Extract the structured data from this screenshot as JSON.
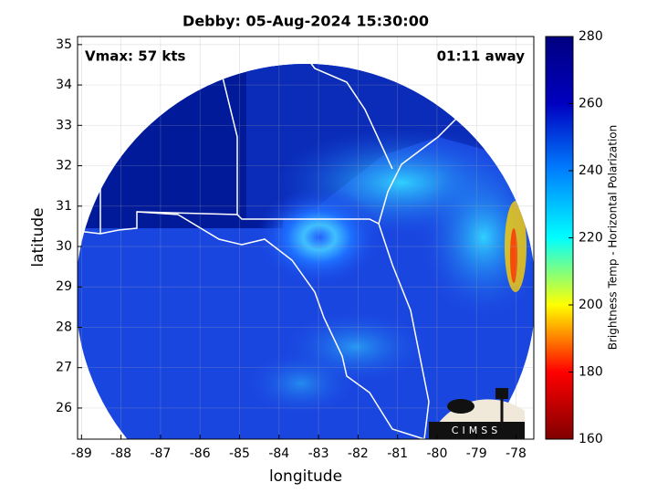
{
  "chart_data": {
    "type": "map",
    "title": "Debby: 05-Aug-2024 15:30:00",
    "annotations": [
      "Vmax: 57 kts",
      "01:11 away"
    ],
    "xlabel": "longitude",
    "ylabel": "latitude",
    "xlim": [
      -89.1,
      -77.55
    ],
    "ylim": [
      25.23,
      35.2
    ],
    "xticks": [
      -89,
      -88,
      -87,
      -86,
      -85,
      -84,
      -83,
      -82,
      -81,
      -80,
      -79,
      -78
    ],
    "yticks": [
      26,
      27,
      28,
      29,
      30,
      31,
      32,
      33,
      34,
      35
    ],
    "grid": true,
    "colorbar": {
      "label": "Brightness Temp - Horizontal Polarization",
      "lim": [
        160,
        280
      ],
      "ticks": [
        160,
        180,
        200,
        220,
        240,
        260,
        280
      ],
      "colors": [
        "#800000",
        "#ff0000",
        "#ffff00",
        "#00ffff",
        "#0080ff",
        "#0000c0",
        "#000080"
      ]
    },
    "logo": "CIMSS"
  }
}
